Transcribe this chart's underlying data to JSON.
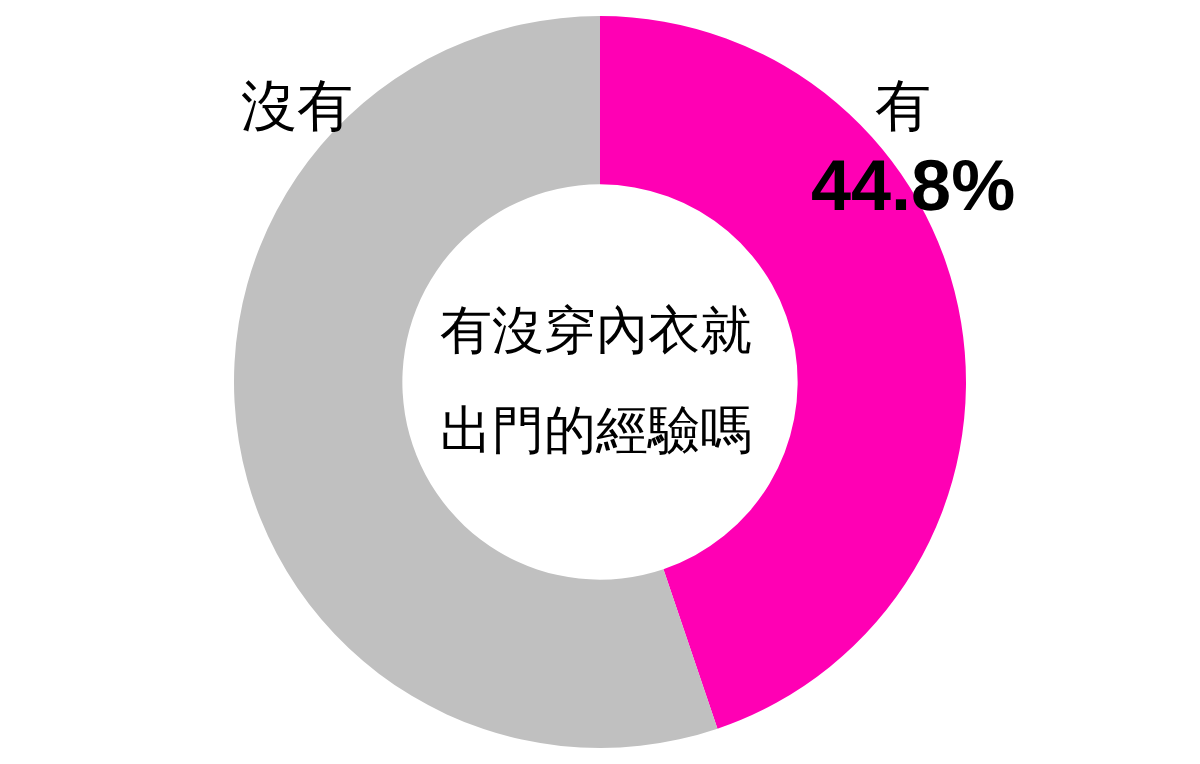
{
  "chart_data": {
    "type": "donut",
    "title": "有沒穿內衣就出門的經驗嗎",
    "categories": [
      "有",
      "沒有"
    ],
    "values": [
      44.8,
      55.2
    ],
    "colors": [
      "#ff00b4",
      "#c0c0c0"
    ],
    "value_labels": [
      "44.8%",
      null
    ],
    "legend": false
  }
}
